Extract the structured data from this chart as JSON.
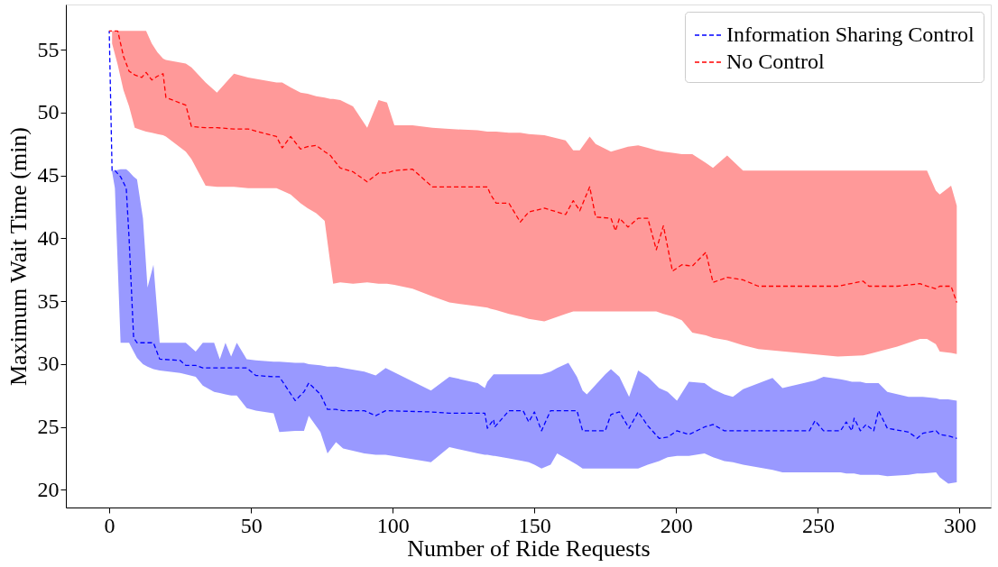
{
  "chart_data": {
    "type": "line",
    "xlabel": "Number of Ride Requests",
    "ylabel": "Maximum Wait Time (min)",
    "xlim": [
      -15.3,
      311
    ],
    "ylim": [
      18.6,
      58.6
    ],
    "xticks": [
      0,
      50,
      100,
      150,
      200,
      250,
      300
    ],
    "yticks": [
      20,
      25,
      30,
      35,
      40,
      45,
      50,
      55
    ],
    "grid": false,
    "legend": "top right",
    "line_style": "dashed",
    "marker": "none",
    "series": [
      {
        "name": "Information Sharing Control",
        "color": "#0000ff",
        "x": [
          0,
          1,
          2,
          4,
          6,
          7,
          8.6,
          9.8,
          11.9,
          13.5,
          15.6,
          17.8,
          25,
          27,
          30.5,
          33,
          37,
          39,
          41,
          43,
          45,
          48.5,
          51.7,
          58,
          60,
          65.6,
          68.7,
          70.4,
          74.5,
          77,
          80,
          82.5,
          90,
          94,
          97.5,
          113.5,
          120,
          130,
          132.5,
          133.4,
          135.6,
          136,
          141,
          146,
          148,
          150,
          152.5,
          155.7,
          158,
          162,
          165,
          167,
          168.5,
          175,
          177,
          180,
          183.4,
          186.6,
          190,
          194,
          197,
          200.3,
          204.5,
          210,
          213,
          217,
          220,
          223.6,
          234,
          237.5,
          247,
          249,
          252,
          258,
          260,
          262,
          262.8,
          265,
          267,
          269.7,
          271.4,
          274.5,
          282,
          285,
          287,
          291.7,
          293,
          296,
          299
        ],
        "values": [
          56.5,
          45.4,
          45.4,
          44.9,
          44.0,
          40.0,
          32.1,
          31.7,
          31.7,
          31.7,
          31.7,
          30.4,
          30.3,
          29.9,
          29.9,
          29.7,
          29.7,
          29.7,
          29.7,
          29.7,
          29.7,
          29.7,
          29.1,
          29.0,
          29.0,
          27.1,
          27.8,
          28.5,
          27.6,
          26.4,
          26.4,
          26.3,
          26.3,
          25.9,
          26.3,
          26.2,
          26.1,
          26.1,
          26.1,
          24.9,
          25.6,
          25.0,
          26.3,
          26.3,
          25.4,
          26.2,
          24.7,
          26.3,
          26.3,
          26.3,
          26.3,
          24.7,
          24.7,
          24.7,
          26.0,
          26.2,
          24.9,
          26.2,
          25.1,
          24.1,
          24.2,
          24.7,
          24.4,
          25.0,
          25.2,
          24.7,
          24.7,
          24.7,
          24.7,
          24.7,
          24.7,
          25.5,
          24.7,
          24.7,
          25.4,
          24.7,
          25.7,
          24.7,
          25.2,
          24.7,
          26.3,
          24.9,
          24.6,
          24.1,
          24.5,
          24.7,
          24.4,
          24.3,
          24.1
        ],
        "lower": [
          null,
          45.3,
          44.0,
          31.7,
          31.7,
          31.7,
          31.0,
          30.5,
          30.0,
          29.8,
          29.6,
          29.5,
          29.3,
          29.2,
          29.0,
          28.3,
          27.8,
          27.7,
          27.6,
          27.5,
          27.5,
          26.5,
          26.3,
          26.1,
          24.6,
          24.7,
          24.7,
          25.9,
          24.6,
          22.9,
          23.8,
          23.3,
          22.9,
          22.8,
          22.8,
          22.2,
          23.4,
          22.9,
          22.8,
          22.8,
          22.7,
          22.7,
          22.5,
          22.3,
          22.2,
          22.0,
          21.7,
          22.0,
          22.9,
          22.4,
          22.0,
          21.7,
          21.7,
          21.7,
          21.7,
          21.7,
          21.7,
          21.7,
          22.0,
          22.3,
          22.6,
          22.7,
          22.7,
          22.9,
          22.6,
          22.3,
          22.2,
          22.0,
          21.6,
          21.4,
          21.4,
          21.4,
          21.4,
          21.4,
          21.3,
          21.3,
          21.3,
          21.2,
          21.2,
          21.2,
          21.2,
          21.1,
          21.2,
          21.3,
          21.3,
          21.4,
          21.0,
          20.5,
          20.6
        ],
        "upper": [
          null,
          45.4,
          45.4,
          45.5,
          45.5,
          45.3,
          44.9,
          44.7,
          41.6,
          36.1,
          37.9,
          31.7,
          31.7,
          31.7,
          31.0,
          31.7,
          31.7,
          30.4,
          31.7,
          30.6,
          31.7,
          30.4,
          30.3,
          30.2,
          30.2,
          30.1,
          30.1,
          30.0,
          29.9,
          29.8,
          29.8,
          29.7,
          29.4,
          29.1,
          29.7,
          27.9,
          29.0,
          28.5,
          28.1,
          28.6,
          29.2,
          29.2,
          29.2,
          29.2,
          29.2,
          29.2,
          29.2,
          29.4,
          29.7,
          30.1,
          29.0,
          27.9,
          27.6,
          29.2,
          29.6,
          29.0,
          27.4,
          29.5,
          29.0,
          28.1,
          27.8,
          27.1,
          28.6,
          28.5,
          28.0,
          27.6,
          27.4,
          28.0,
          28.9,
          28.1,
          28.6,
          28.7,
          29.0,
          28.8,
          28.7,
          28.6,
          28.6,
          28.6,
          28.5,
          28.5,
          28.5,
          27.8,
          27.4,
          27.4,
          27.4,
          27.3,
          27.2,
          27.2,
          27.1
        ]
      },
      {
        "name": "No Control",
        "color": "#ff0000",
        "x": [
          0,
          1,
          3,
          5,
          7,
          9,
          11.5,
          13,
          15,
          17,
          19,
          20,
          27,
          29,
          34,
          38,
          44,
          49,
          59,
          61,
          64,
          67.5,
          70,
          73,
          76,
          78,
          79,
          81.5,
          86,
          91,
          95,
          98,
          100.6,
          107,
          114,
          120,
          130,
          133.4,
          134.5,
          136.5,
          141,
          145,
          148,
          153.5,
          161,
          163.7,
          166,
          169.5,
          171.6,
          177,
          178.6,
          180,
          183,
          186.6,
          190,
          193,
          195.5,
          198.7,
          202,
          205.7,
          210.5,
          213,
          218,
          223.6,
          229,
          257,
          266,
          268,
          278,
          286,
          288.5,
          291.6,
          293,
          297,
          299
        ],
        "values": [
          56.5,
          56.5,
          56.5,
          54.5,
          53.3,
          53.0,
          52.8,
          53.2,
          52.6,
          52.9,
          53.1,
          51.2,
          50.6,
          48.9,
          48.8,
          48.8,
          48.7,
          48.7,
          48.1,
          47.2,
          48.1,
          47.1,
          47.3,
          47.4,
          46.9,
          46.6,
          46.3,
          45.6,
          45.3,
          44.5,
          45.2,
          45.2,
          45.4,
          45.5,
          44.1,
          44.1,
          44.1,
          44.1,
          43.5,
          42.8,
          42.8,
          41.3,
          42.1,
          42.4,
          41.9,
          43.0,
          42.2,
          44.1,
          41.7,
          41.6,
          40.6,
          41.6,
          40.9,
          41.6,
          41.6,
          39.1,
          41.0,
          37.4,
          37.9,
          37.8,
          38.9,
          36.5,
          36.9,
          36.7,
          36.2,
          36.2,
          36.6,
          36.2,
          36.2,
          36.4,
          36.2,
          36.0,
          36.2,
          36.2,
          34.9
        ],
        "lower": [
          null,
          55.5,
          53.8,
          51.8,
          50.5,
          48.8,
          48.6,
          48.5,
          48.4,
          48.3,
          48.2,
          48.1,
          46.9,
          46.3,
          44.2,
          44.1,
          44.1,
          44.0,
          44.0,
          43.8,
          43.5,
          42.8,
          42.4,
          42.0,
          41.4,
          38.0,
          36.4,
          36.5,
          36.4,
          36.5,
          36.4,
          36.4,
          36.3,
          36.0,
          35.4,
          34.9,
          34.6,
          34.5,
          34.4,
          34.3,
          34.0,
          33.8,
          33.6,
          33.4,
          34.0,
          34.2,
          34.2,
          34.2,
          34.2,
          34.2,
          34.2,
          34.2,
          34.2,
          34.2,
          34.2,
          34.2,
          34.0,
          33.8,
          33.5,
          32.5,
          32.3,
          32.1,
          31.9,
          31.5,
          31.2,
          30.6,
          30.7,
          30.8,
          31.4,
          32.0,
          32.0,
          31.6,
          31.0,
          30.9,
          30.8
        ],
        "upper": [
          null,
          56.5,
          56.5,
          56.5,
          56.5,
          56.5,
          56.5,
          56.5,
          55.5,
          54.8,
          54.3,
          54.2,
          53.9,
          53.6,
          52.4,
          51.6,
          53.1,
          52.8,
          52.4,
          52.4,
          52.0,
          51.6,
          51.5,
          51.3,
          51.2,
          51.1,
          51.1,
          51.0,
          50.5,
          48.8,
          51.0,
          50.8,
          49.0,
          49.0,
          48.8,
          48.7,
          48.6,
          48.5,
          48.5,
          48.5,
          48.4,
          48.4,
          48.3,
          48.2,
          47.8,
          47.0,
          47.0,
          48.1,
          47.5,
          46.9,
          47.0,
          47.1,
          47.3,
          47.4,
          47.2,
          47.0,
          46.9,
          46.8,
          46.7,
          46.7,
          46.0,
          45.6,
          46.6,
          45.4,
          45.4,
          45.4,
          45.4,
          45.4,
          45.4,
          45.4,
          45.4,
          43.8,
          43.5,
          44.2,
          42.6
        ]
      }
    ]
  }
}
